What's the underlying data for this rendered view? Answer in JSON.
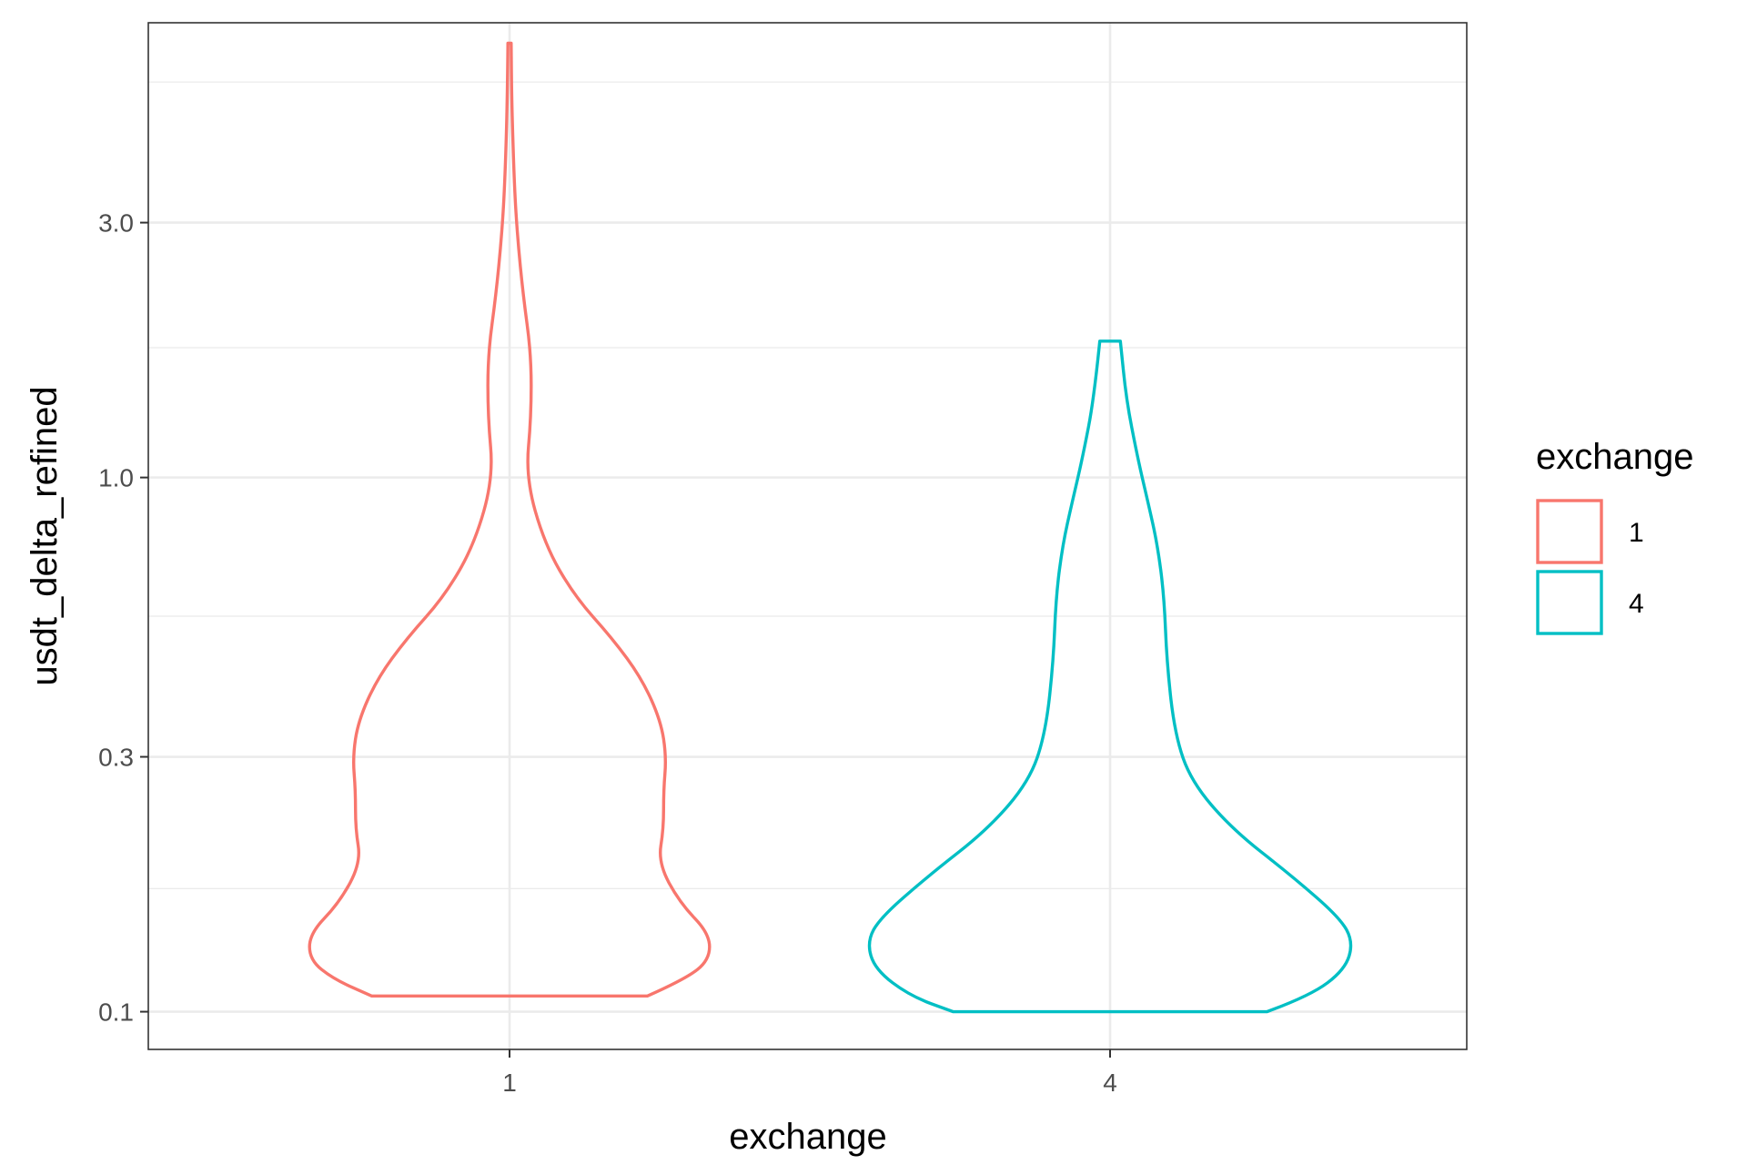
{
  "chart_data": {
    "type": "violin",
    "title": "",
    "xlabel": "exchange",
    "ylabel": "usdt_delta_refined",
    "y_scale": "log10",
    "ylim": [
      0.085,
      7.1
    ],
    "yticks": [
      {
        "value": 0.1,
        "label": "0.1"
      },
      {
        "value": 0.3,
        "label": "0.3"
      },
      {
        "value": 1.0,
        "label": "1.0"
      },
      {
        "value": 3.0,
        "label": "3.0"
      }
    ],
    "y_minor_gridlines": [
      0.17,
      0.55,
      1.75,
      5.5
    ],
    "categories": [
      "1",
      "4"
    ],
    "grid": true,
    "legend": {
      "title": "exchange",
      "position": "right",
      "entries": [
        {
          "label": "1",
          "color": "#F8766D"
        },
        {
          "label": "4",
          "color": "#00BFC4"
        }
      ]
    },
    "series": [
      {
        "category": "1",
        "color": "#F8766D",
        "ymin": 0.107,
        "ymax": 6.5,
        "profile": [
          [
            0.107,
            0.51
          ],
          [
            0.115,
            0.65
          ],
          [
            0.125,
            0.74
          ],
          [
            0.14,
            0.74
          ],
          [
            0.16,
            0.63
          ],
          [
            0.19,
            0.55
          ],
          [
            0.22,
            0.57
          ],
          [
            0.26,
            0.57
          ],
          [
            0.3,
            0.58
          ],
          [
            0.35,
            0.56
          ],
          [
            0.42,
            0.49
          ],
          [
            0.5,
            0.38
          ],
          [
            0.6,
            0.24
          ],
          [
            0.75,
            0.13
          ],
          [
            1.0,
            0.06
          ],
          [
            1.3,
            0.08
          ],
          [
            1.7,
            0.08
          ],
          [
            2.2,
            0.05
          ],
          [
            2.8,
            0.03
          ],
          [
            3.5,
            0.018
          ],
          [
            5.0,
            0.008
          ],
          [
            6.5,
            0.006
          ]
        ]
      },
      {
        "category": "4",
        "color": "#00BFC4",
        "ymin": 0.1,
        "ymax": 1.8,
        "profile": [
          [
            0.1,
            0.58
          ],
          [
            0.107,
            0.74
          ],
          [
            0.12,
            0.87
          ],
          [
            0.135,
            0.9
          ],
          [
            0.15,
            0.85
          ],
          [
            0.18,
            0.67
          ],
          [
            0.22,
            0.45
          ],
          [
            0.27,
            0.3
          ],
          [
            0.33,
            0.24
          ],
          [
            0.45,
            0.21
          ],
          [
            0.6,
            0.2
          ],
          [
            0.75,
            0.175
          ],
          [
            0.9,
            0.14
          ],
          [
            1.1,
            0.1
          ],
          [
            1.4,
            0.06
          ],
          [
            1.8,
            0.038
          ]
        ]
      }
    ]
  }
}
